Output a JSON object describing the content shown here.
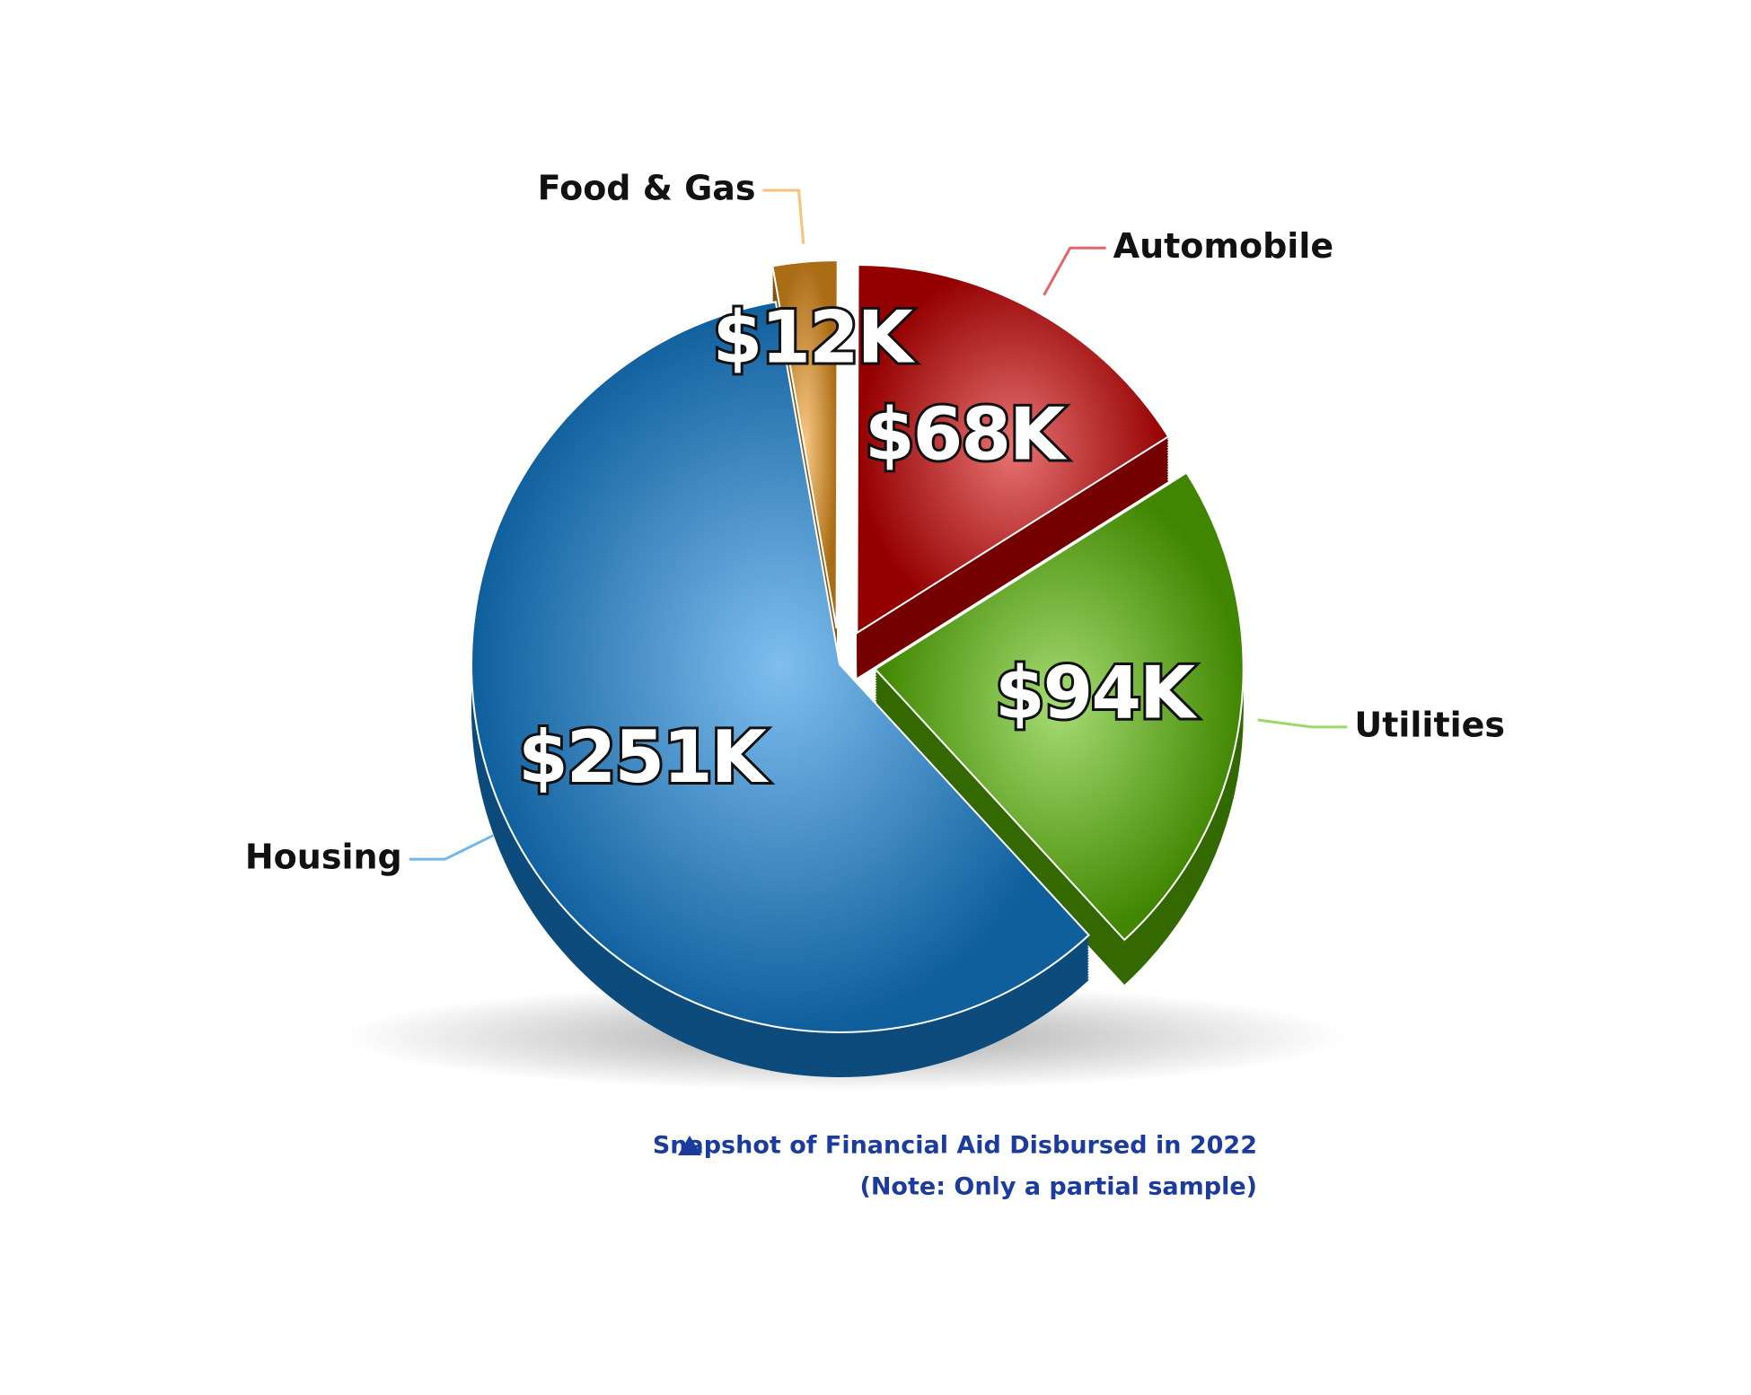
{
  "chart_data": {
    "type": "pie",
    "categories": [
      "Food & Gas",
      "Automobile",
      "Utilities",
      "Housing"
    ],
    "values": [
      12000,
      68000,
      94000,
      251000
    ],
    "value_labels": [
      "$12K",
      "$68K",
      "$94K",
      "$251K"
    ],
    "colors": [
      "#f39a1e",
      "#d40000",
      "#5cbf00",
      "#1688e0"
    ],
    "caption": [
      "Snapshot of Financial Aid Disbursed in 2022",
      "(Note: Only a partial sample)"
    ]
  }
}
